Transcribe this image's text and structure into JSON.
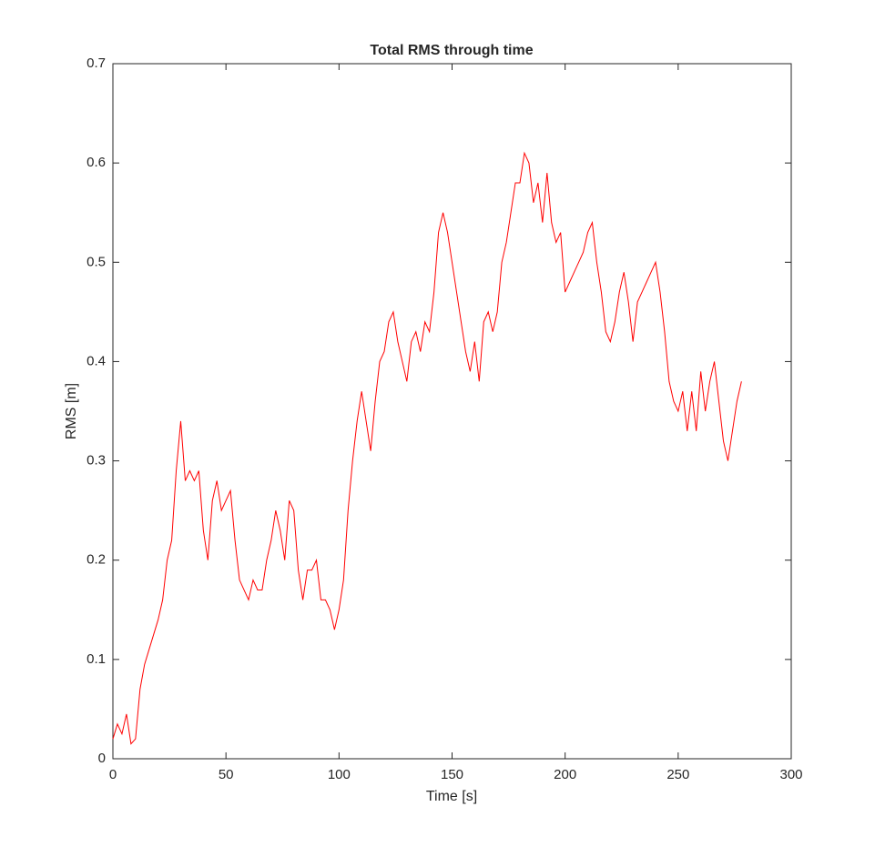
{
  "chart_data": {
    "type": "line",
    "title": "Total RMS through time",
    "x_label": "Time [s]",
    "y_label": "RMS [m]",
    "color": "#ff0000",
    "x": [
      0,
      2,
      4,
      6,
      8,
      10,
      12,
      14,
      16,
      18,
      20,
      22,
      24,
      26,
      28,
      30,
      32,
      34,
      36,
      38,
      40,
      42,
      44,
      46,
      48,
      50,
      52,
      54,
      56,
      58,
      60,
      62,
      64,
      66,
      68,
      70,
      72,
      74,
      76,
      78,
      80,
      82,
      84,
      86,
      88,
      90,
      92,
      94,
      96,
      98,
      100,
      102,
      104,
      106,
      108,
      110,
      112,
      114,
      116,
      118,
      120,
      122,
      124,
      126,
      128,
      130,
      132,
      134,
      136,
      138,
      140,
      142,
      144,
      146,
      148,
      150,
      152,
      154,
      156,
      158,
      160,
      162,
      164,
      166,
      168,
      170,
      172,
      174,
      176,
      178,
      180,
      182,
      184,
      186,
      188,
      190,
      192,
      194,
      196,
      198,
      200,
      202,
      204,
      206,
      208,
      210,
      212,
      214,
      216,
      218,
      220,
      222,
      224,
      226,
      228,
      230,
      232,
      234,
      236,
      238,
      240,
      242,
      244,
      246,
      248,
      250,
      252,
      254,
      256,
      258,
      260,
      262,
      264,
      266,
      268,
      270,
      272,
      274,
      276,
      278
    ],
    "values": [
      0.02,
      0.035,
      0.025,
      0.045,
      0.015,
      0.02,
      0.07,
      0.095,
      0.11,
      0.125,
      0.14,
      0.16,
      0.2,
      0.22,
      0.29,
      0.34,
      0.28,
      0.29,
      0.28,
      0.29,
      0.23,
      0.2,
      0.26,
      0.28,
      0.25,
      0.26,
      0.27,
      0.22,
      0.18,
      0.17,
      0.16,
      0.18,
      0.17,
      0.17,
      0.2,
      0.22,
      0.25,
      0.23,
      0.2,
      0.26,
      0.25,
      0.19,
      0.16,
      0.19,
      0.19,
      0.2,
      0.16,
      0.16,
      0.15,
      0.13,
      0.15,
      0.18,
      0.25,
      0.3,
      0.34,
      0.37,
      0.34,
      0.31,
      0.36,
      0.4,
      0.41,
      0.44,
      0.45,
      0.42,
      0.4,
      0.38,
      0.42,
      0.43,
      0.41,
      0.44,
      0.43,
      0.47,
      0.53,
      0.55,
      0.53,
      0.5,
      0.47,
      0.44,
      0.41,
      0.39,
      0.42,
      0.38,
      0.44,
      0.45,
      0.43,
      0.45,
      0.5,
      0.52,
      0.55,
      0.58,
      0.58,
      0.61,
      0.6,
      0.56,
      0.58,
      0.54,
      0.59,
      0.54,
      0.52,
      0.53,
      0.47,
      0.48,
      0.49,
      0.5,
      0.51,
      0.53,
      0.54,
      0.5,
      0.47,
      0.43,
      0.42,
      0.44,
      0.47,
      0.49,
      0.46,
      0.42,
      0.46,
      0.47,
      0.48,
      0.49,
      0.5,
      0.47,
      0.43,
      0.38,
      0.36,
      0.35,
      0.37,
      0.33,
      0.37,
      0.33,
      0.39,
      0.35,
      0.38,
      0.4,
      0.36,
      0.32,
      0.3,
      0.33,
      0.36,
      0.38
    ],
    "xlim": [
      0,
      300
    ],
    "xticks": [
      0,
      50,
      100,
      150,
      200,
      250,
      300
    ],
    "ylim": [
      0,
      0.7
    ],
    "yticks": [
      0,
      0.1,
      0.2,
      0.3,
      0.4,
      0.5,
      0.6,
      0.7
    ],
    "grid": false
  }
}
